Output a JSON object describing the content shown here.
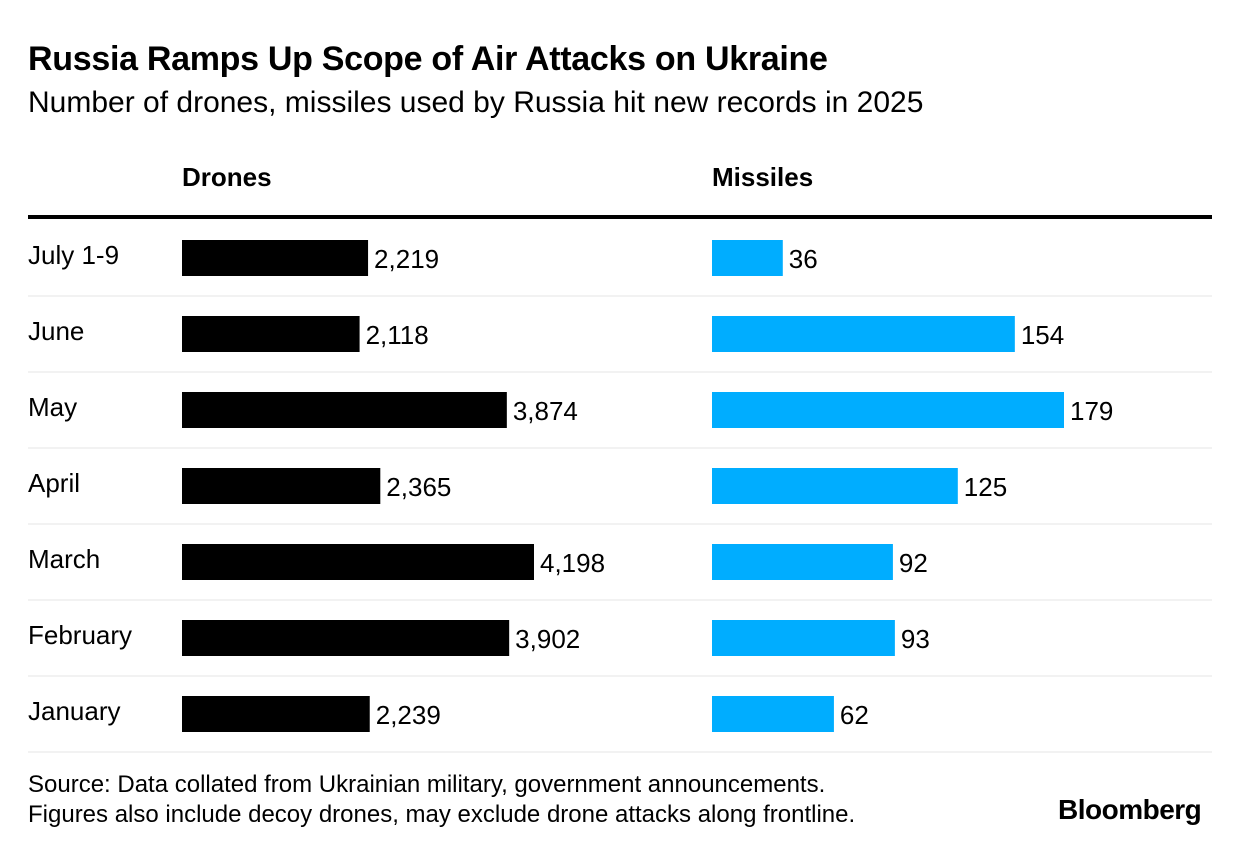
{
  "title": "Russia Ramps Up Scope of Air Attacks on Ukraine",
  "subtitle": "Number of drones, missiles used by Russia hit new records in 2025",
  "source_line1": "Source: Data collated from Ukrainian military, government announcements.",
  "source_line2": "Figures also include decoy drones, may exclude drone attacks along frontline.",
  "brand": "Bloomberg",
  "chart_data": {
    "type": "bar",
    "orientation": "horizontal",
    "categories": [
      "July 1-9",
      "June",
      "May",
      "April",
      "March",
      "February",
      "January"
    ],
    "series": [
      {
        "name": "Drones",
        "values": [
          2219,
          2118,
          3874,
          2365,
          4198,
          3902,
          2239
        ],
        "labels": [
          "2,219",
          "2,118",
          "3,874",
          "2,365",
          "4,198",
          "3,902",
          "2,239"
        ],
        "color": "#000000"
      },
      {
        "name": "Missiles",
        "values": [
          36,
          154,
          179,
          125,
          92,
          93,
          62
        ],
        "labels": [
          "36",
          "154",
          "179",
          "125",
          "92",
          "93",
          "62"
        ],
        "color": "#00adff"
      }
    ],
    "grid": false,
    "legend": "none"
  }
}
